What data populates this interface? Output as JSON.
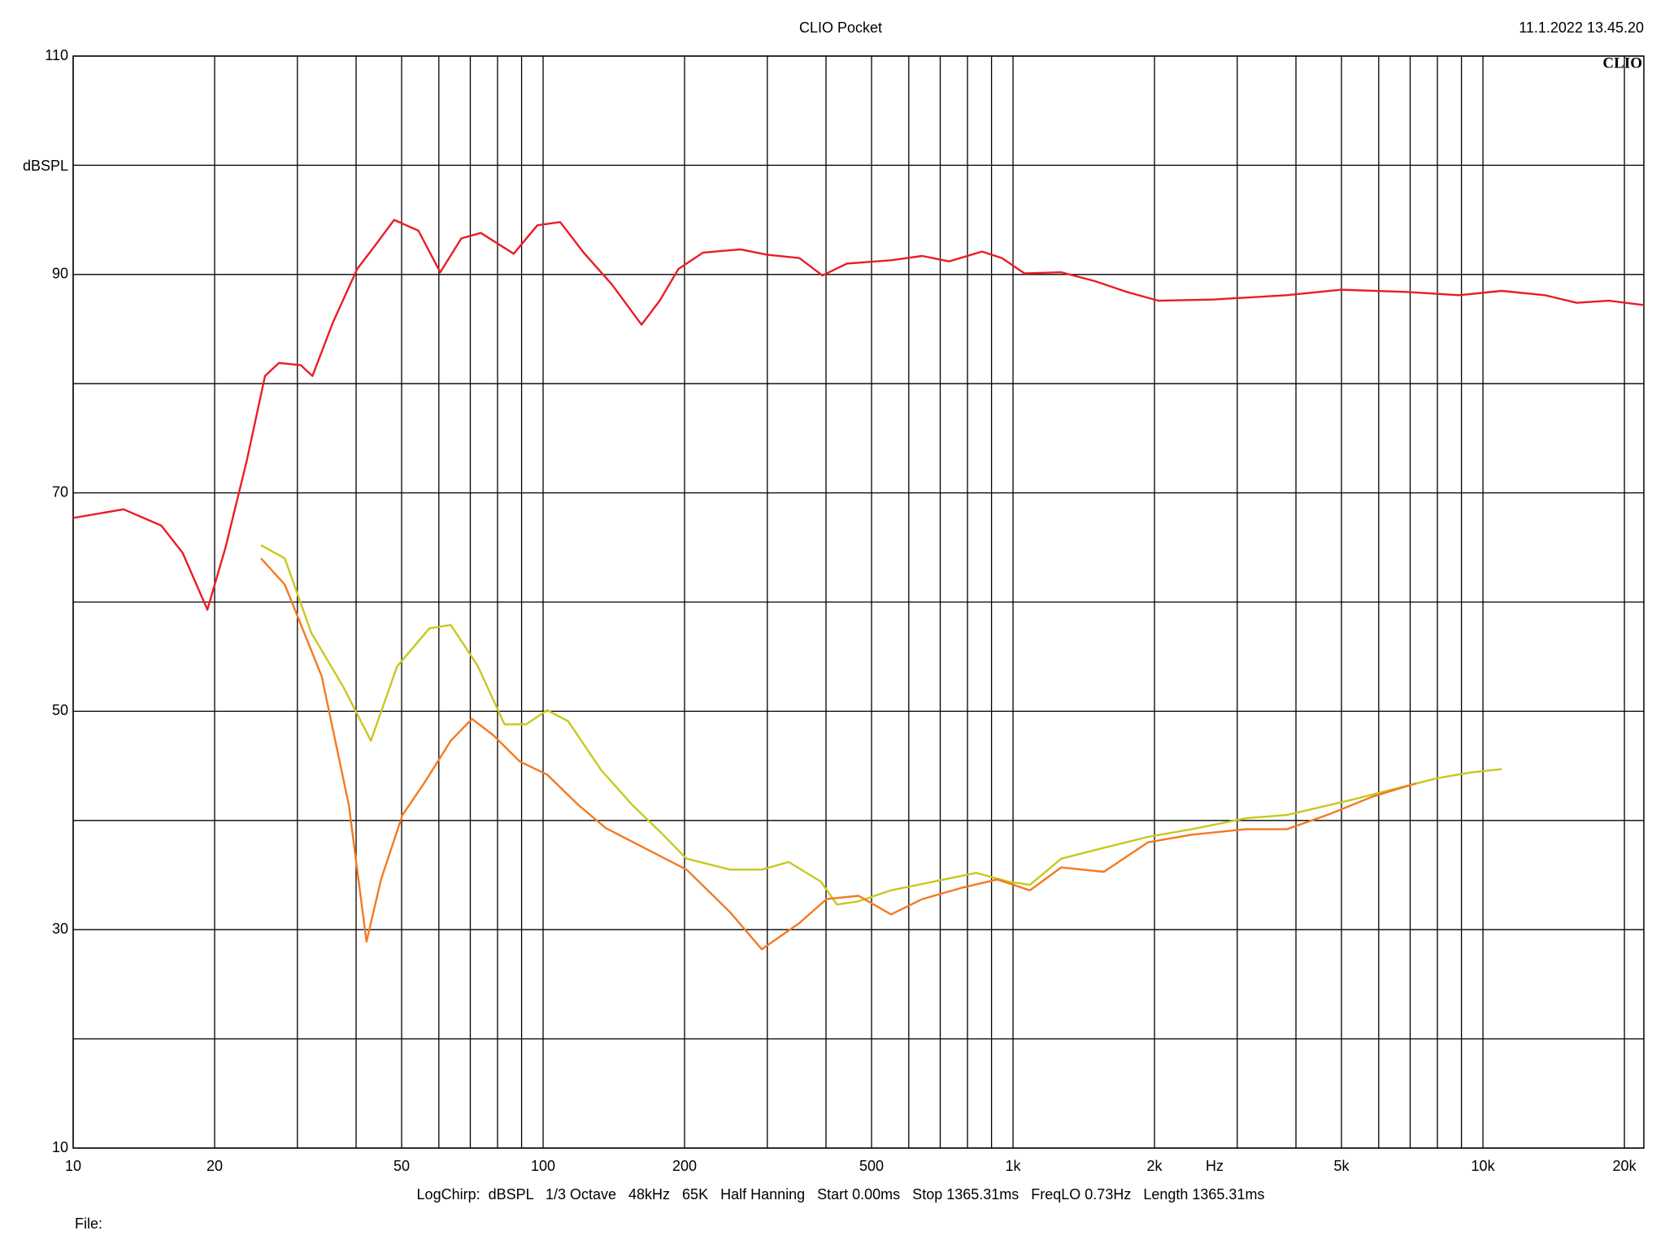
{
  "chart_data": {
    "type": "line",
    "title": "CLIO Pocket",
    "timestamp": "11.1.2022 13.45.20",
    "logo": "CLIO",
    "y_label": "dBSPL",
    "x_label": "Hz",
    "footer": "LogChirp:  dBSPL   1/3 Octave   48kHz   65K   Half Hanning   Start 0.00ms   Stop 1365.31ms   FreqLO 0.73Hz   Length 1365.31ms",
    "file_label": "File:",
    "x_log": true,
    "grid": true,
    "xlim": [
      10,
      22000
    ],
    "ylim": [
      10,
      110
    ],
    "yticks": [
      10,
      30,
      50,
      70,
      90,
      110
    ],
    "ygrid": [
      10,
      20,
      30,
      40,
      50,
      60,
      70,
      80,
      90,
      100,
      110
    ],
    "xticks": [
      10,
      20,
      50,
      100,
      200,
      500,
      {
        "value": 1000,
        "label": "1k"
      },
      {
        "value": 2000,
        "label": "2k"
      },
      {
        "value": 5000,
        "label": "5k"
      },
      {
        "value": 10000,
        "label": "10k"
      },
      {
        "value": 20000,
        "label": "20k"
      }
    ],
    "xgrid": [
      10,
      20,
      30,
      40,
      50,
      60,
      70,
      80,
      90,
      100,
      200,
      300,
      400,
      500,
      600,
      700,
      800,
      900,
      1000,
      2000,
      3000,
      4000,
      5000,
      6000,
      7000,
      8000,
      9000,
      10000,
      20000
    ],
    "series": [
      {
        "color": "#ec1c24",
        "x": [
          10,
          12.8,
          15.4,
          17.1,
          19.3,
          21.1,
          23.4,
          25.6,
          27.4,
          30.5,
          32.3,
          35.7,
          40.2,
          44.0,
          48.2,
          54.3,
          60.4,
          67.0,
          73.7,
          86.6,
          97.2,
          108.7,
          122,
          140,
          162,
          177,
          194,
          219,
          263,
          300,
          351,
          393,
          443,
          550,
          641,
          731,
          859,
          947,
          1058,
          1266,
          1491,
          1746,
          2041,
          2655,
          3825,
          4997,
          6870,
          8890,
          10970,
          13540,
          15830,
          18510,
          22000
        ],
        "values": [
          67.7,
          68.5,
          67.0,
          64.5,
          59.3,
          65,
          72.9,
          80.7,
          81.9,
          81.7,
          80.7,
          85.6,
          90.5,
          92.7,
          95.0,
          94.0,
          90.2,
          93.3,
          93.8,
          91.9,
          94.5,
          94.8,
          92.0,
          89.1,
          85.4,
          87.6,
          90.5,
          92.0,
          92.3,
          91.8,
          91.5,
          89.9,
          91.0,
          91.3,
          91.7,
          91.2,
          92.1,
          91.5,
          90.1,
          90.2,
          89.4,
          88.4,
          87.6,
          87.7,
          88.1,
          88.6,
          88.4,
          88.1,
          88.5,
          88.1,
          87.4,
          87.6,
          87.2
        ]
      },
      {
        "color": "#c8c81e",
        "x": [
          25.1,
          28.2,
          32.1,
          37.6,
          43.0,
          48.9,
          57.3,
          63.6,
          72.5,
          82.8,
          92.0,
          102,
          113,
          133,
          155,
          177,
          202,
          250,
          292,
          333,
          390,
          422,
          469,
          550,
          677,
          835,
          978,
          1086,
          1266,
          1561,
          1937,
          2400,
          3130,
          3825,
          5265,
          6500,
          8050,
          9430,
          10970
        ],
        "values": [
          65.2,
          64.0,
          57.2,
          52.2,
          47.3,
          54.1,
          57.6,
          57.9,
          54.2,
          48.8,
          48.8,
          50.1,
          49.1,
          44.6,
          41.4,
          39.0,
          36.5,
          35.5,
          35.5,
          36.2,
          34.4,
          32.3,
          32.6,
          33.6,
          34.4,
          35.2,
          34.4,
          34.1,
          36.5,
          37.5,
          38.5,
          39.2,
          40.2,
          40.5,
          41.9,
          42.9,
          43.9,
          44.4,
          44.7
        ]
      },
      {
        "color": "#f47920",
        "x": [
          25.1,
          28.2,
          33.8,
          38.6,
          42.1,
          45.2,
          50.2,
          55.8,
          63.6,
          70.6,
          78.4,
          89.2,
          102,
          119,
          136,
          164,
          202,
          250,
          292,
          351,
          401,
          469,
          550,
          641,
          773,
          925,
          1086,
          1266,
          1561,
          1937,
          2400,
          3130,
          3825,
          4729,
          5839,
          7212
        ],
        "values": [
          64.0,
          61.6,
          53.2,
          41.4,
          28.9,
          34.6,
          40.5,
          43.4,
          47.3,
          49.3,
          47.8,
          45.4,
          44.2,
          41.4,
          39.3,
          37.5,
          35.5,
          31.6,
          28.2,
          30.6,
          32.8,
          33.1,
          31.4,
          32.8,
          33.8,
          34.6,
          33.6,
          35.7,
          35.3,
          38.0,
          38.7,
          39.2,
          39.2,
          40.6,
          42.2,
          43.4
        ]
      }
    ]
  }
}
